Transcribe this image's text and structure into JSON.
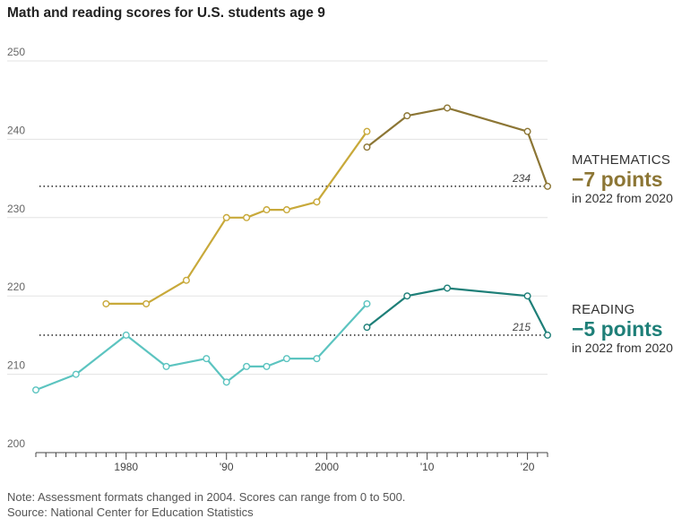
{
  "title": "Math and reading scores for U.S. students age 9",
  "colors": {
    "math_early": "#c8a93a",
    "math_late": "#8c7635",
    "reading_early": "#5cc4c0",
    "reading_late": "#1e7f78",
    "grid": "#e3e3e3",
    "axis": "#444444"
  },
  "annotations": {
    "math": {
      "name": "MATHEMATICS",
      "change": "−7 points",
      "sub": "in 2022 from 2020",
      "last_label": "234"
    },
    "reading": {
      "name": "READING",
      "change": "−5 points",
      "sub": "in 2022 from 2020",
      "last_label": "215"
    }
  },
  "footer": {
    "note": "Note: Assessment formats changed in 2004. Scores can range from 0 to 500.",
    "source": "Source: National Center for Education Statistics"
  },
  "chart_data": {
    "type": "line",
    "title": "Math and reading scores for U.S. students age 9",
    "xlabel": "",
    "ylabel": "",
    "ylim": [
      200,
      250
    ],
    "xlim": [
      1971,
      2022
    ],
    "yticks": [
      200,
      210,
      220,
      230,
      240,
      250
    ],
    "xticks": [
      {
        "value": 1980,
        "label": "1980"
      },
      {
        "value": 1990,
        "label": "'90"
      },
      {
        "value": 2000,
        "label": "2000"
      },
      {
        "value": 2010,
        "label": "'10"
      },
      {
        "value": 2020,
        "label": "'20"
      }
    ],
    "grid": true,
    "series": [
      {
        "name": "MATHEMATICS",
        "color": "#c8a93a",
        "points": [
          [
            1978,
            219
          ],
          [
            1982,
            219
          ],
          [
            1986,
            222
          ],
          [
            1990,
            230
          ],
          [
            1992,
            230
          ],
          [
            1994,
            231
          ],
          [
            1996,
            231
          ],
          [
            1999,
            232
          ],
          [
            2004,
            241
          ]
        ]
      },
      {
        "name": "MATHEMATICS",
        "color": "#8c7635",
        "points": [
          [
            2004,
            239
          ],
          [
            2008,
            243
          ],
          [
            2012,
            244
          ],
          [
            2020,
            241
          ],
          [
            2022,
            234
          ]
        ]
      },
      {
        "name": "READING",
        "color": "#5cc4c0",
        "points": [
          [
            1971,
            208
          ],
          [
            1975,
            210
          ],
          [
            1980,
            215
          ],
          [
            1984,
            211
          ],
          [
            1988,
            212
          ],
          [
            1990,
            209
          ],
          [
            1992,
            211
          ],
          [
            1994,
            211
          ],
          [
            1996,
            212
          ],
          [
            1999,
            212
          ],
          [
            2004,
            219
          ]
        ]
      },
      {
        "name": "READING",
        "color": "#1e7f78",
        "points": [
          [
            2004,
            216
          ],
          [
            2008,
            220
          ],
          [
            2012,
            221
          ],
          [
            2020,
            220
          ],
          [
            2022,
            215
          ]
        ]
      }
    ],
    "reference_lines": [
      {
        "series": "MATHEMATICS",
        "value": 234,
        "label": "234"
      },
      {
        "series": "READING",
        "value": 215,
        "label": "215"
      }
    ]
  }
}
